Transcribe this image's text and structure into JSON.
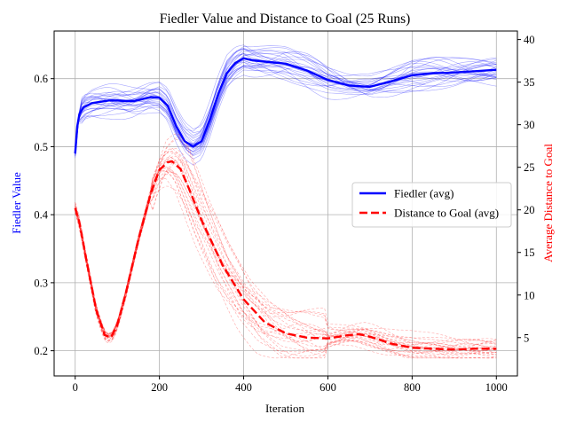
{
  "chart_data": {
    "type": "line",
    "title": "Fiedler Value and Distance to Goal (25 Runs)",
    "xlabel": "Iteration",
    "ylabel_left": "Fiedler Value",
    "ylabel_right": "Average Distance to Goal",
    "xlim": [
      -50,
      1050
    ],
    "ylim_left": [
      0.163,
      0.67
    ],
    "ylim_right": [
      0.5,
      41
    ],
    "xticks": [
      0,
      200,
      400,
      600,
      800,
      1000
    ],
    "yticks_left": [
      0.2,
      0.3,
      0.4,
      0.5,
      0.6
    ],
    "yticks_right": [
      5,
      10,
      15,
      20,
      25,
      30,
      35,
      40
    ],
    "grid": true,
    "legend_position": "center-right",
    "colors": {
      "fiedler": "#0000ff",
      "distance": "#ff0000",
      "grid": "#b0b0b0",
      "axes": "#000000"
    },
    "series": [
      {
        "name": "Fiedler (avg)",
        "axis": "left",
        "style": "solid",
        "x": [
          0,
          5,
          10,
          20,
          40,
          60,
          80,
          100,
          120,
          140,
          160,
          180,
          200,
          220,
          240,
          260,
          280,
          300,
          320,
          340,
          360,
          380,
          400,
          420,
          450,
          500,
          550,
          600,
          650,
          700,
          750,
          800,
          850,
          900,
          950,
          1000
        ],
        "values": [
          0.49,
          0.53,
          0.548,
          0.558,
          0.564,
          0.566,
          0.568,
          0.568,
          0.567,
          0.567,
          0.57,
          0.573,
          0.572,
          0.56,
          0.53,
          0.508,
          0.5,
          0.508,
          0.54,
          0.578,
          0.608,
          0.623,
          0.63,
          0.627,
          0.625,
          0.622,
          0.612,
          0.598,
          0.59,
          0.588,
          0.596,
          0.605,
          0.608,
          0.609,
          0.611,
          0.613
        ]
      },
      {
        "name": "Distance to Goal (avg)",
        "axis": "right",
        "style": "dashed",
        "x": [
          0,
          10,
          25,
          50,
          70,
          85,
          100,
          120,
          150,
          180,
          200,
          220,
          230,
          250,
          270,
          300,
          350,
          400,
          450,
          500,
          550,
          600,
          650,
          675,
          700,
          750,
          800,
          850,
          900,
          950,
          1000
        ],
        "values": [
          20.2,
          18.5,
          14.5,
          8.2,
          5.3,
          5.0,
          6.5,
          10.2,
          16.5,
          22.0,
          24.7,
          25.6,
          25.7,
          24.8,
          22.5,
          18.8,
          13.5,
          9.5,
          6.8,
          5.5,
          5.0,
          4.9,
          5.3,
          5.4,
          5.1,
          4.3,
          3.8,
          3.7,
          3.6,
          3.7,
          3.7
        ]
      }
    ]
  }
}
